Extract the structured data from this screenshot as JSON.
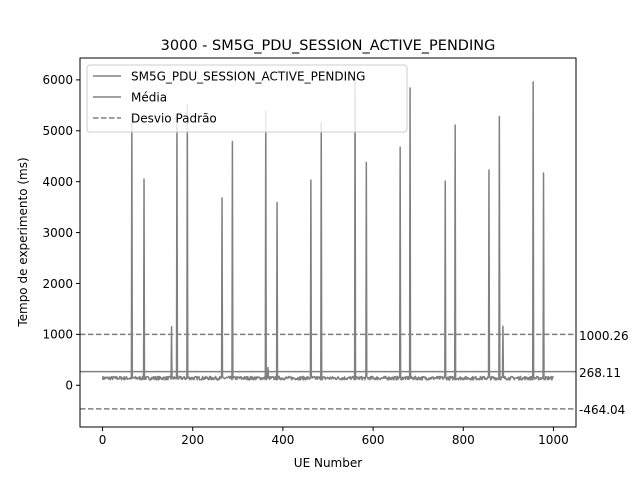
{
  "chart_data": {
    "type": "line",
    "title": "3000 - SM5G_PDU_SESSION_ACTIVE_PENDING",
    "xlabel": "UE Number",
    "ylabel": "Tempo de experimento (ms)",
    "xlim": [
      -50,
      1050
    ],
    "ylim": [
      -820,
      6430
    ],
    "xticks": [
      0,
      200,
      400,
      600,
      800,
      1000
    ],
    "yticks": [
      0,
      1000,
      2000,
      3000,
      4000,
      5000,
      6000
    ],
    "grid": false,
    "legend_position": "top-left",
    "series_color": "#808080",
    "baseline_ms": 140,
    "spikes": [
      {
        "x": 65,
        "y": 5350
      },
      {
        "x": 92,
        "y": 4050
      },
      {
        "x": 153,
        "y": 1150
      },
      {
        "x": 165,
        "y": 5300
      },
      {
        "x": 188,
        "y": 5500
      },
      {
        "x": 265,
        "y": 3680
      },
      {
        "x": 288,
        "y": 4790
      },
      {
        "x": 362,
        "y": 5380
      },
      {
        "x": 367,
        "y": 350
      },
      {
        "x": 387,
        "y": 3590
      },
      {
        "x": 462,
        "y": 4030
      },
      {
        "x": 485,
        "y": 5160
      },
      {
        "x": 560,
        "y": 6050
      },
      {
        "x": 585,
        "y": 4380
      },
      {
        "x": 660,
        "y": 4680
      },
      {
        "x": 682,
        "y": 5840
      },
      {
        "x": 760,
        "y": 4010
      },
      {
        "x": 782,
        "y": 5110
      },
      {
        "x": 857,
        "y": 4230
      },
      {
        "x": 880,
        "y": 5280
      },
      {
        "x": 888,
        "y": 1160
      },
      {
        "x": 955,
        "y": 5960
      },
      {
        "x": 978,
        "y": 4170
      }
    ],
    "series": [
      {
        "name": "SM5G_PDU_SESSION_ACTIVE_PENDING",
        "style": "solid"
      },
      {
        "name": "Média",
        "value": 268.11,
        "label": "268.11",
        "style": "solid"
      },
      {
        "name": "Desvio Padrão",
        "upper": 1000.26,
        "upper_label": "1000.26",
        "lower": -464.04,
        "lower_label": "-464.04",
        "style": "dashed"
      }
    ]
  }
}
